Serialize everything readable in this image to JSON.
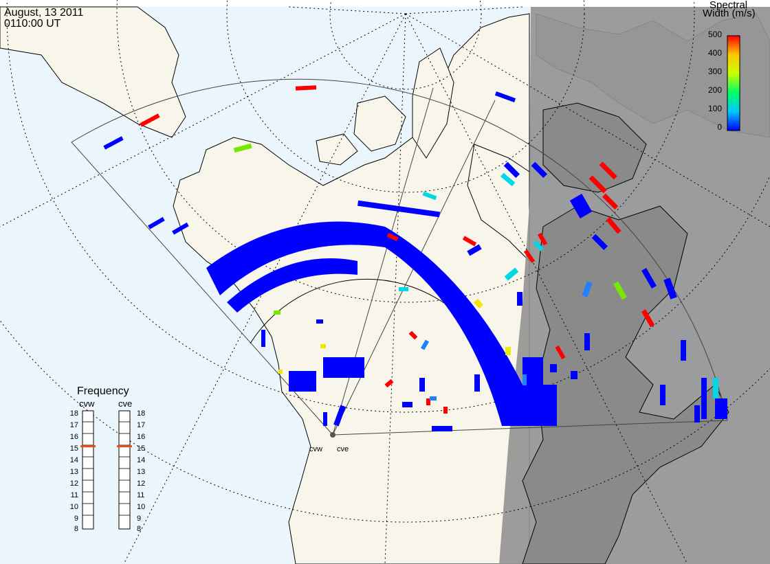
{
  "header": {
    "date": "August, 13 2011",
    "time": "0110:00 UT"
  },
  "colorbar": {
    "title_line1": "Spectral",
    "title_line2": "Width (m/s)",
    "ticks": [
      "500",
      "400",
      "300",
      "200",
      "100",
      "0"
    ],
    "range": [
      0,
      500
    ],
    "stops": [
      "#0000ff",
      "#00c8ff",
      "#00ff64",
      "#c8ff00",
      "#ffc800",
      "#ff0000"
    ]
  },
  "frequency_panel": {
    "title": "Frequency",
    "radars": [
      {
        "name": "cvw",
        "value_mhz": 15
      },
      {
        "name": "cve",
        "value_mhz": 15
      }
    ],
    "scale": [
      "18",
      "17",
      "16",
      "15",
      "14",
      "13",
      "12",
      "11",
      "10",
      "9",
      "8"
    ],
    "marker_color": "#e8501e"
  },
  "radar_labels": [
    "cvw",
    "cve"
  ],
  "colors": {
    "ocean": "#eaf6fc",
    "land": "#f8f6ea",
    "night": "#929292",
    "data_blue": "#0000ff",
    "data_red": "#ff0000",
    "data_cyan": "#00d8e8",
    "data_green": "#78e800",
    "data_yellow": "#f0e800"
  }
}
